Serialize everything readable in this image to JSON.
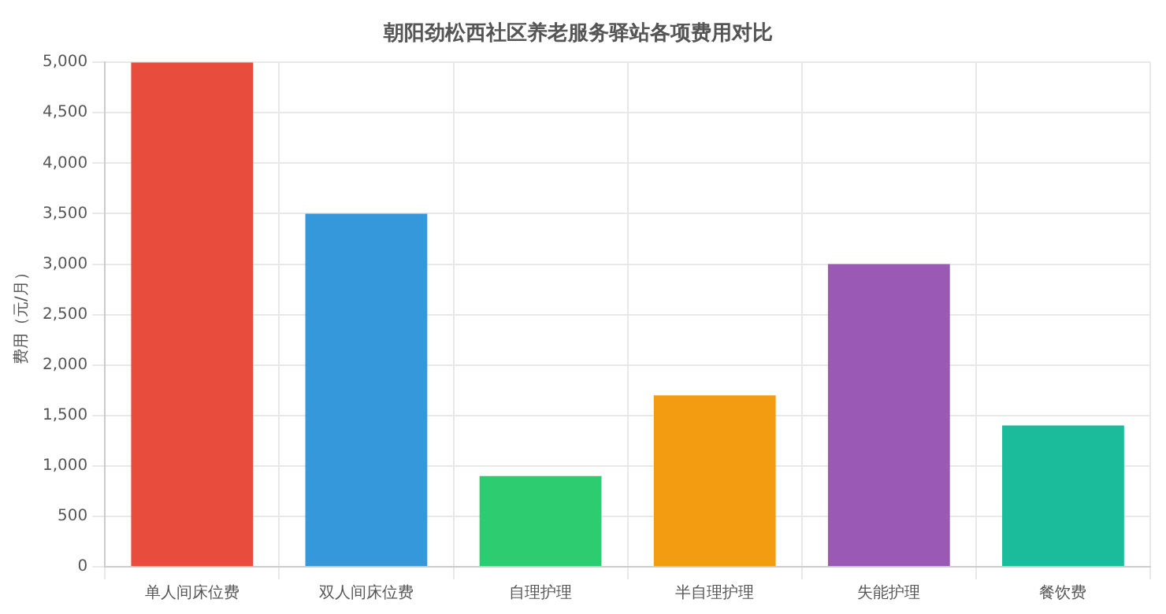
{
  "chart_data": {
    "type": "bar",
    "title": "朝阳劲松西社区养老服务驿站各项费用对比",
    "ylabel": "费用（元/月）",
    "categories": [
      "单人间床位费",
      "双人间床位费",
      "自理护理",
      "半自理护理",
      "失能护理",
      "餐饮费"
    ],
    "values": [
      5000,
      3500,
      900,
      1700,
      3000,
      1400
    ],
    "colors": [
      "#e74c3c",
      "#3498db",
      "#2ecc71",
      "#f39c12",
      "#9b59b6",
      "#1abc9c"
    ],
    "ylim": [
      0,
      5000
    ],
    "yticks": [
      0,
      500,
      {
        "value": 1000,
        "label": "1,000"
      },
      {
        "value": 1500,
        "label": "1,500"
      },
      {
        "value": 2000,
        "label": "2,000"
      },
      {
        "value": 2500,
        "label": "2,500"
      },
      {
        "value": 3000,
        "label": "3,000"
      },
      {
        "value": 3500,
        "label": "3,500"
      },
      {
        "value": 4000,
        "label": "4,000"
      },
      {
        "value": 4500,
        "label": "4,500"
      },
      {
        "value": 5000,
        "label": "5,000"
      }
    ],
    "grid": true,
    "legend": false
  }
}
